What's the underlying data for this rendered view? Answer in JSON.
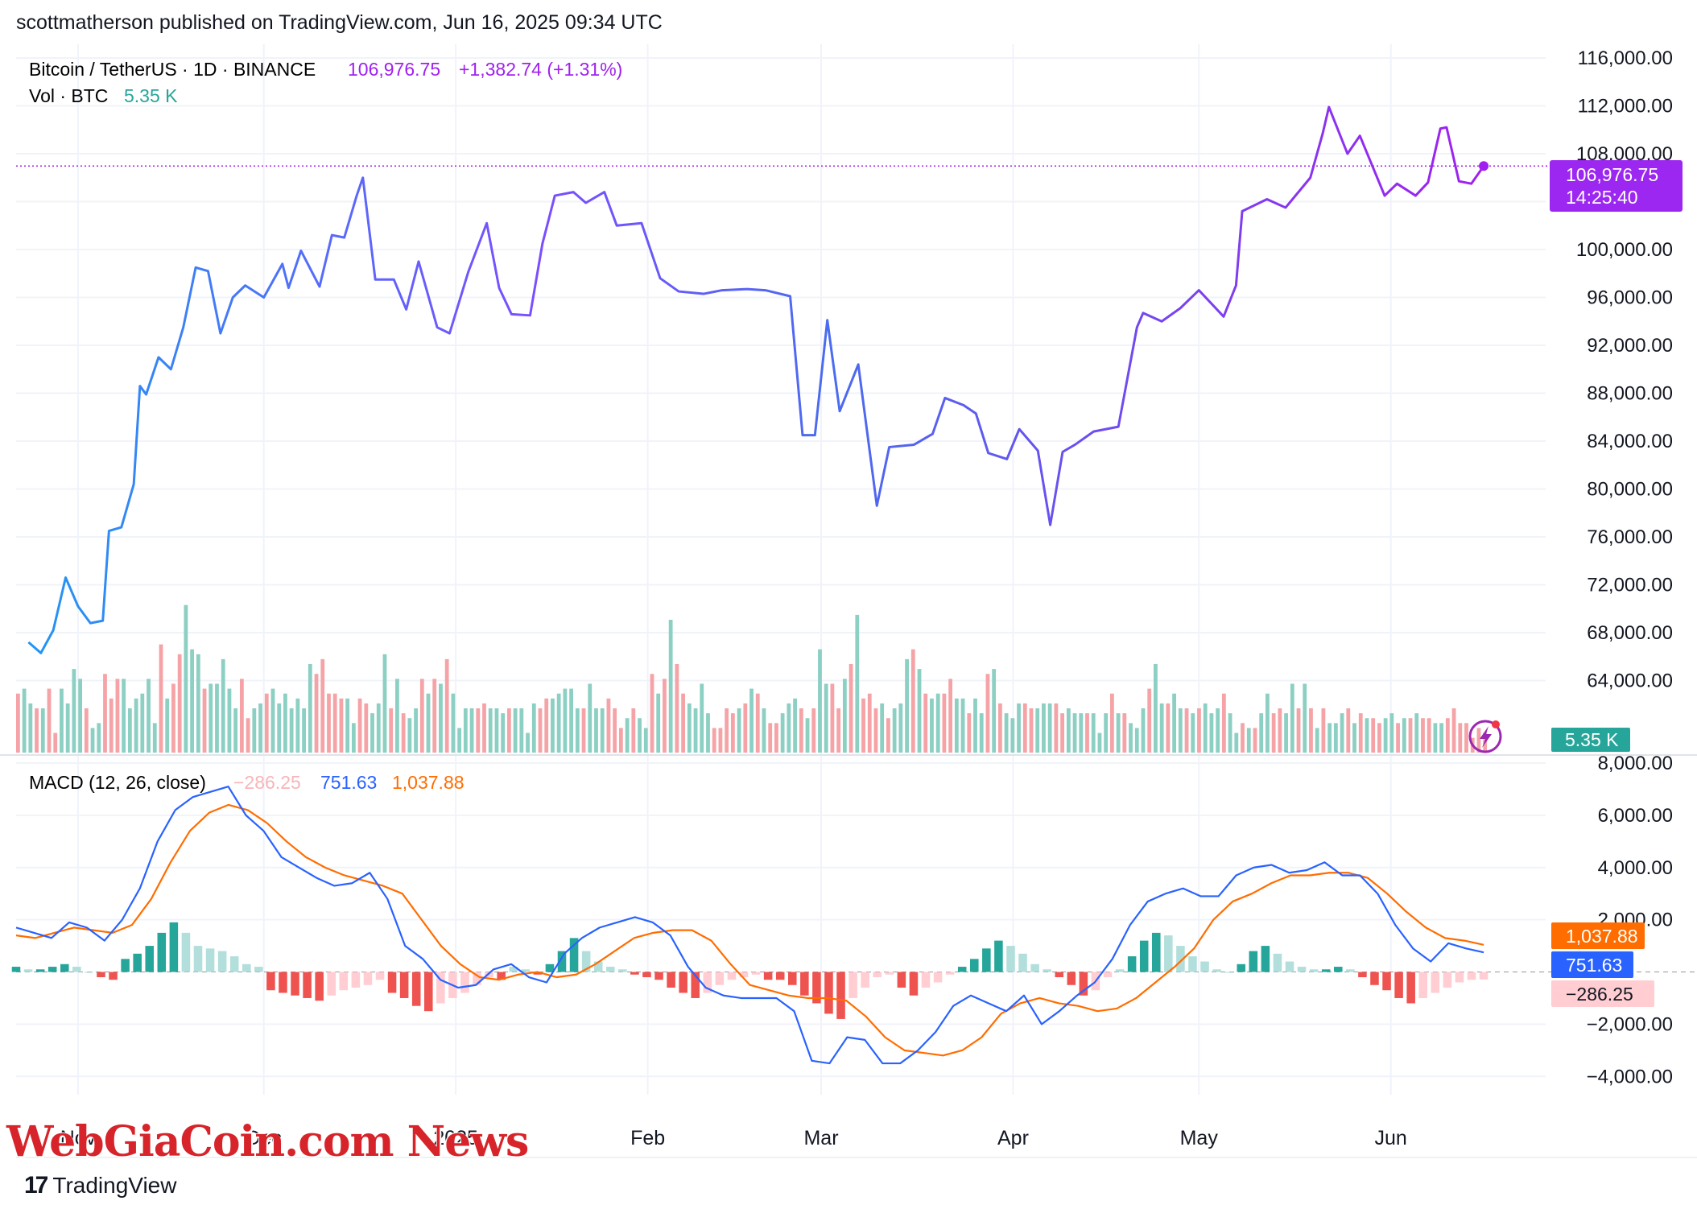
{
  "header": {
    "published": "scottmatherson published on TradingView.com, Jun 16, 2025 09:34 UTC"
  },
  "legend": {
    "symbol": "Bitcoin / TetherUS · 1D · BINANCE",
    "price": "106,976.75",
    "change": "+1,382.74 (+1.31%)",
    "vol_label": "Vol · BTC",
    "vol_value": "5.35 K",
    "macd_label": "MACD (12, 26, close)",
    "macd_hist": "−286.25",
    "macd_line": "751.63",
    "macd_signal": "1,037.88"
  },
  "price_tags": {
    "price": "106,976.75",
    "countdown": "14:25:40",
    "volume": "5.35 K",
    "macd_signal": "1,037.88",
    "macd_line": "751.63",
    "macd_hist": "−286.25"
  },
  "colors": {
    "price_line_start": "#2196F3",
    "price_line_end": "#9C27F0",
    "up_volume": "#8ccfc3",
    "down_volume": "#f5a3a6",
    "macd_line": "#2962FF",
    "signal_line": "#FF6D00",
    "hist_up_strong": "#26a69a",
    "hist_up_weak": "#b2dfdb",
    "hist_down_strong": "#ef5350",
    "hist_down_weak": "#ffcdd2",
    "price_tag": "#9c27f0",
    "volume_tag": "#26a69a"
  },
  "brand": {
    "watermark": "WebGiaCoin.com News",
    "tradingview": "TradingView",
    "tv_logo": "17"
  },
  "chart_data": [
    {
      "type": "line",
      "title": "Bitcoin / TetherUS · 1D · BINANCE",
      "x": [
        "2024-10-24",
        "2024-10-26",
        "2024-10-28",
        "2024-10-30",
        "2024-11-01",
        "2024-11-03",
        "2024-11-05",
        "2024-11-06",
        "2024-11-08",
        "2024-11-10",
        "2024-11-11",
        "2024-11-12",
        "2024-11-14",
        "2024-11-16",
        "2024-11-18",
        "2024-11-20",
        "2024-11-22",
        "2024-11-24",
        "2024-11-26",
        "2024-11-28",
        "2024-12-01",
        "2024-12-04",
        "2024-12-05",
        "2024-12-07",
        "2024-12-10",
        "2024-12-12",
        "2024-12-14",
        "2024-12-16",
        "2024-12-17",
        "2024-12-19",
        "2024-12-22",
        "2024-12-24",
        "2024-12-26",
        "2024-12-29",
        "2024-12-31",
        "2025-01-03",
        "2025-01-06",
        "2025-01-08",
        "2025-01-10",
        "2025-01-13",
        "2025-01-15",
        "2025-01-17",
        "2025-01-20",
        "2025-01-22",
        "2025-01-25",
        "2025-01-27",
        "2025-01-31",
        "2025-02-03",
        "2025-02-06",
        "2025-02-10",
        "2025-02-13",
        "2025-02-17",
        "2025-02-20",
        "2025-02-24",
        "2025-02-26",
        "2025-02-28",
        "2025-03-02",
        "2025-03-04",
        "2025-03-07",
        "2025-03-10",
        "2025-03-12",
        "2025-03-16",
        "2025-03-19",
        "2025-03-21",
        "2025-03-24",
        "2025-03-26",
        "2025-03-28",
        "2025-03-31",
        "2025-04-02",
        "2025-04-05",
        "2025-04-07",
        "2025-04-09",
        "2025-04-11",
        "2025-04-14",
        "2025-04-18",
        "2025-04-21",
        "2025-04-22",
        "2025-04-25",
        "2025-04-28",
        "2025-05-01",
        "2025-05-05",
        "2025-05-07",
        "2025-05-08",
        "2025-05-12",
        "2025-05-15",
        "2025-05-19",
        "2025-05-21",
        "2025-05-22",
        "2025-05-25",
        "2025-05-27",
        "2025-05-31",
        "2025-06-02",
        "2025-06-05",
        "2025-06-07",
        "2025-06-09",
        "2025-06-10",
        "2025-06-12",
        "2025-06-14",
        "2025-06-16"
      ],
      "y": [
        67200,
        66300,
        68200,
        72600,
        70200,
        68800,
        69000,
        76500,
        76800,
        80400,
        88600,
        87900,
        91000,
        90000,
        93500,
        98500,
        98200,
        93000,
        96000,
        97000,
        96000,
        98800,
        96800,
        99900,
        96900,
        101200,
        101000,
        104500,
        106000,
        97500,
        97500,
        95000,
        99000,
        93500,
        93000,
        98100,
        102200,
        96800,
        94600,
        94500,
        100500,
        104500,
        104800,
        103900,
        104800,
        102000,
        102200,
        97600,
        96500,
        96300,
        96600,
        96700,
        96600,
        96100,
        84500,
        84500,
        94100,
        86500,
        90400,
        78600,
        83500,
        83700,
        84600,
        87600,
        87000,
        86300,
        83000,
        82500,
        85000,
        83200,
        77000,
        83100,
        83700,
        84800,
        85200,
        93500,
        94700,
        94000,
        95100,
        96600,
        94400,
        97000,
        103200,
        104200,
        103500,
        106000,
        109700,
        111900,
        108000,
        109500,
        104500,
        105500,
        104500,
        105600,
        110100,
        110200,
        105700,
        105500,
        106976.75
      ],
      "xticks": [
        "Nov",
        "Dec",
        "2025",
        "Feb",
        "Mar",
        "Apr",
        "May",
        "Jun"
      ],
      "xlabel": "",
      "ylabel": "",
      "ylim": [
        60000,
        116000
      ],
      "yticks": [
        "64,000.00",
        "68,000.00",
        "72,000.00",
        "76,000.00",
        "80,000.00",
        "84,000.00",
        "88,000.00",
        "92,000.00",
        "96,000.00",
        "100,000.00",
        "104,000.00",
        "108,000.00",
        "112,000.00",
        "116,000.00"
      ],
      "last_price": 106976.75,
      "grid": true
    },
    {
      "type": "bar",
      "title": "Vol · BTC",
      "ylim": [
        0,
        36
      ],
      "values": [
        12,
        13,
        10,
        9,
        9,
        13,
        4,
        13,
        10,
        17,
        15,
        9,
        5,
        6,
        16,
        11,
        15,
        15,
        9,
        11,
        12,
        15,
        6,
        22,
        11,
        14,
        20,
        30,
        21,
        20,
        13,
        14,
        14,
        19,
        13,
        9,
        15,
        7,
        9,
        10,
        12,
        13,
        10,
        12,
        9,
        11,
        9,
        18,
        16,
        19,
        12,
        12,
        11,
        11,
        6,
        11,
        10,
        8,
        10,
        20,
        9,
        15,
        8,
        7,
        9,
        15,
        12,
        15,
        14,
        19,
        12,
        5,
        9,
        9,
        9,
        10,
        9,
        9,
        8,
        9,
        9,
        9,
        4,
        10,
        9,
        11,
        11,
        12,
        13,
        13,
        9,
        9,
        14,
        9,
        9,
        11,
        9,
        5,
        7,
        9,
        7,
        5,
        16,
        12,
        15,
        27,
        18,
        12,
        10,
        9,
        14,
        8,
        5,
        5,
        9,
        8,
        9,
        10,
        13,
        12,
        9,
        6,
        6,
        8,
        10,
        11,
        9,
        7,
        9,
        21,
        14,
        14,
        9,
        15,
        18,
        28,
        11,
        12,
        9,
        10,
        7,
        9,
        10,
        19,
        21,
        17,
        12,
        11,
        12,
        12,
        15,
        11,
        11,
        8,
        11,
        8,
        16,
        17,
        10,
        8,
        7,
        10,
        10,
        9,
        9,
        10,
        10,
        10,
        8,
        9,
        8,
        8,
        8,
        8,
        4,
        8,
        12,
        8,
        8,
        6,
        5,
        9,
        13,
        18,
        10,
        10,
        12,
        9,
        9,
        8,
        9,
        10,
        8,
        9,
        12,
        8,
        4,
        6,
        5,
        5,
        8,
        12,
        8,
        9,
        8,
        14,
        9,
        14,
        9,
        5,
        9,
        6,
        6,
        8,
        9,
        6,
        8,
        7,
        7,
        6,
        7,
        8,
        6,
        7,
        7,
        8,
        7,
        7,
        6,
        6,
        7,
        9,
        6,
        6,
        3,
        5,
        4
      ],
      "up": [
        0,
        1,
        1,
        0,
        1,
        0,
        0,
        1,
        1,
        1,
        1,
        0,
        1,
        1,
        0,
        0,
        0,
        1,
        1,
        1,
        1,
        1,
        1,
        0,
        1,
        0,
        0,
        1,
        1,
        1,
        0,
        1,
        1,
        1,
        1,
        1,
        0,
        0,
        1,
        1,
        0,
        1,
        1,
        1,
        1,
        1,
        1,
        1,
        0,
        0,
        0,
        0,
        0,
        1,
        1,
        0,
        0,
        1,
        1,
        1,
        0,
        1,
        0,
        1,
        1,
        0,
        1,
        0,
        1,
        0,
        1,
        1,
        1,
        1,
        0,
        0,
        1,
        1,
        1,
        0,
        1,
        1,
        1,
        1,
        0,
        0,
        1,
        1,
        1,
        1,
        1,
        0,
        1,
        1,
        1,
        0,
        0,
        0,
        1,
        0,
        1,
        1,
        0,
        1,
        0,
        1,
        0,
        0,
        1,
        1,
        1,
        1,
        0,
        0,
        0,
        0,
        1,
        0,
        1,
        0,
        1,
        0,
        0,
        1,
        1,
        1,
        0,
        1,
        0,
        1,
        1,
        0,
        0,
        1,
        0,
        1,
        0,
        0,
        0,
        1,
        0,
        1,
        1,
        1,
        0,
        1,
        0,
        1,
        1,
        0,
        0,
        1,
        1,
        0,
        1,
        1,
        0,
        1,
        0,
        1,
        1,
        1,
        0,
        0,
        1,
        1,
        1,
        0,
        0,
        1,
        1,
        1,
        0,
        1,
        1,
        1,
        0,
        1,
        0,
        1,
        1,
        1,
        0,
        1,
        1,
        0,
        1,
        1,
        0,
        1,
        0,
        1,
        1,
        1,
        0,
        1,
        1,
        0,
        1,
        0,
        1,
        1,
        0,
        0,
        1,
        1,
        0,
        1,
        0,
        1,
        0,
        1,
        1,
        1,
        0,
        1,
        0,
        1,
        0,
        0,
        1,
        1,
        0,
        1,
        0,
        1,
        0,
        0,
        1,
        1
      ]
    },
    {
      "type": "line",
      "title": "MACD (12, 26, close)",
      "ylim": [
        -4700,
        8000
      ],
      "yticks": [
        "−4,000.00",
        "−2,000.00",
        "2,000.00",
        "4,000.00",
        "6,000.00",
        "8,000.00"
      ],
      "series": [
        {
          "name": "MACD",
          "values": [
            1700,
            1500,
            1300,
            1900,
            1700,
            1200,
            2000,
            3200,
            5000,
            6200,
            6700,
            6900,
            7100,
            6000,
            5400,
            4400,
            4000,
            3600,
            3300,
            3400,
            3800,
            2800,
            1000,
            500,
            -300,
            -600,
            -500,
            100,
            300,
            -200,
            -400,
            700,
            1300,
            1700,
            1900,
            2100,
            1900,
            1400,
            200,
            -600,
            -900,
            -1000,
            -1000,
            -1000,
            -1500,
            -3400,
            -3500,
            -2500,
            -2600,
            -3500,
            -3500,
            -3000,
            -2300,
            -1300,
            -900,
            -1200,
            -1500,
            -900,
            -2000,
            -1500,
            -900,
            -400,
            500,
            1800,
            2700,
            3000,
            3200,
            2900,
            2900,
            3700,
            4000,
            4100,
            3800,
            3900,
            4200,
            3700,
            3700,
            3000,
            1800,
            900,
            400,
            1100,
            900,
            751.63
          ]
        },
        {
          "name": "Signal",
          "values": [
            1400,
            1300,
            1500,
            1700,
            1600,
            1500,
            1800,
            2800,
            4200,
            5400,
            6100,
            6400,
            6200,
            5700,
            5000,
            4400,
            4000,
            3700,
            3500,
            3300,
            3000,
            2000,
            1000,
            300,
            -200,
            -300,
            -100,
            0,
            -200,
            -100,
            300,
            800,
            1300,
            1500,
            1600,
            1600,
            1200,
            300,
            -500,
            -700,
            -900,
            -1000,
            -1000,
            -1100,
            -1700,
            -2500,
            -3000,
            -3100,
            -3200,
            -3000,
            -2500,
            -1600,
            -1200,
            -1000,
            -1200,
            -1300,
            -1500,
            -1400,
            -1000,
            -400,
            200,
            900,
            2000,
            2700,
            3000,
            3400,
            3700,
            3700,
            3800,
            3800,
            3600,
            3000,
            2300,
            1700,
            1300,
            1200,
            1037.88
          ]
        },
        {
          "name": "Histogram",
          "values": [
            200,
            100,
            100,
            200,
            300,
            200,
            0,
            -200,
            -300,
            500,
            700,
            1000,
            1500,
            1900,
            1500,
            1000,
            900,
            800,
            600,
            300,
            200,
            -700,
            -800,
            -900,
            -1000,
            -1100,
            -900,
            -700,
            -600,
            -500,
            -300,
            -800,
            -1000,
            -1300,
            -1500,
            -1200,
            -1000,
            -800,
            -500,
            -200,
            -300,
            200,
            100,
            -100,
            300,
            800,
            1300,
            800,
            400,
            200,
            100,
            -100,
            -200,
            -300,
            -600,
            -800,
            -1000,
            -800,
            -500,
            -300,
            -200,
            -100,
            -300,
            -300,
            -500,
            -900,
            -1200,
            -1600,
            -1800,
            -1000,
            -600,
            -200,
            -100,
            -600,
            -900,
            -600,
            -400,
            -100,
            200,
            500,
            900,
            1200,
            1000,
            700,
            300,
            100,
            -200,
            -500,
            -900,
            -700,
            -200,
            100,
            600,
            1200,
            1500,
            1400,
            1000,
            600,
            400,
            100,
            0,
            300,
            800,
            1000,
            700,
            400,
            200,
            100,
            100,
            200,
            100,
            -200,
            -500,
            -700,
            -1000,
            -1200,
            -1000,
            -800,
            -600,
            -400,
            -300,
            -286.25
          ]
        }
      ],
      "last_values": {
        "histogram": -286.25,
        "macd": 751.63,
        "signal": 1037.88
      }
    }
  ]
}
